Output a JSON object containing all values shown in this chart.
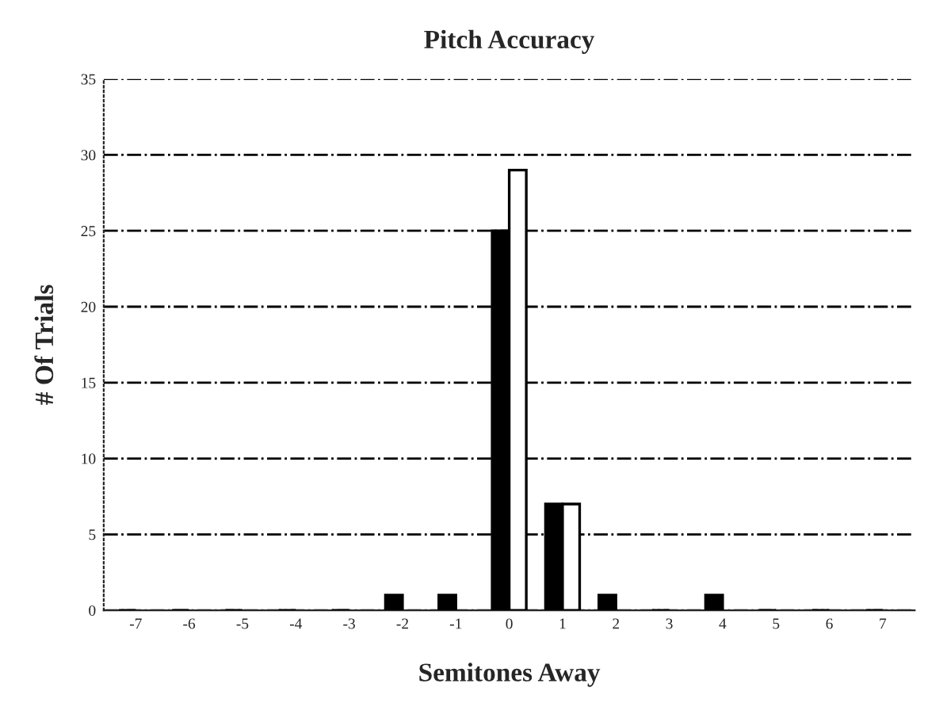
{
  "chart_data": {
    "type": "bar",
    "title": "Pitch Accuracy",
    "xlabel": "Semitones Away",
    "ylabel": "# Of Trials",
    "categories": [
      "-7",
      "-6",
      "-5",
      "-4",
      "-3",
      "-2",
      "-1",
      "0",
      "1",
      "2",
      "3",
      "4",
      "5",
      "6",
      "7"
    ],
    "series": [
      {
        "color": "#000000",
        "values": [
          0,
          0,
          0,
          0,
          0,
          1,
          1,
          25,
          7,
          1,
          0,
          1,
          0,
          0,
          0
        ]
      },
      {
        "color": "#ffffff",
        "values": [
          null,
          null,
          null,
          null,
          null,
          null,
          null,
          29,
          7,
          null,
          null,
          null,
          null,
          null,
          null
        ]
      }
    ],
    "ylim": [
      0,
      35
    ],
    "yticks": [
      0,
      5,
      10,
      15,
      20,
      25,
      30,
      35
    ],
    "grid": "y",
    "legend": false
  }
}
